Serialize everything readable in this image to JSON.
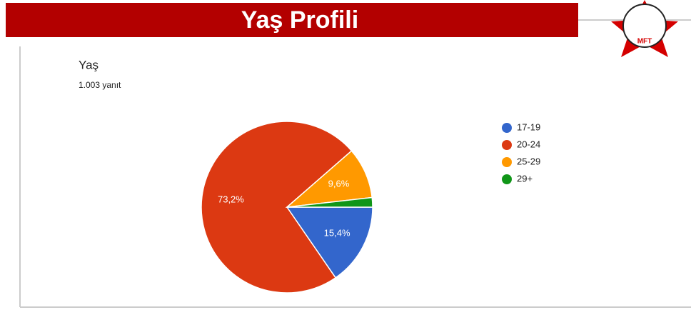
{
  "header": {
    "title": "Yaş Profili",
    "logo_text": "MFT"
  },
  "chart_data": {
    "type": "pie",
    "title": "Yaş",
    "subtitle": "1.003 yanıt",
    "categories": [
      "17-19",
      "20-24",
      "25-29",
      "29+"
    ],
    "values": [
      15.4,
      73.2,
      9.6,
      1.8
    ],
    "value_labels": [
      "15,4%",
      "73,2%",
      "9,6%",
      null
    ],
    "colors": [
      "#3366cc",
      "#dc3912",
      "#ff9900",
      "#109618"
    ],
    "legend": "right"
  }
}
